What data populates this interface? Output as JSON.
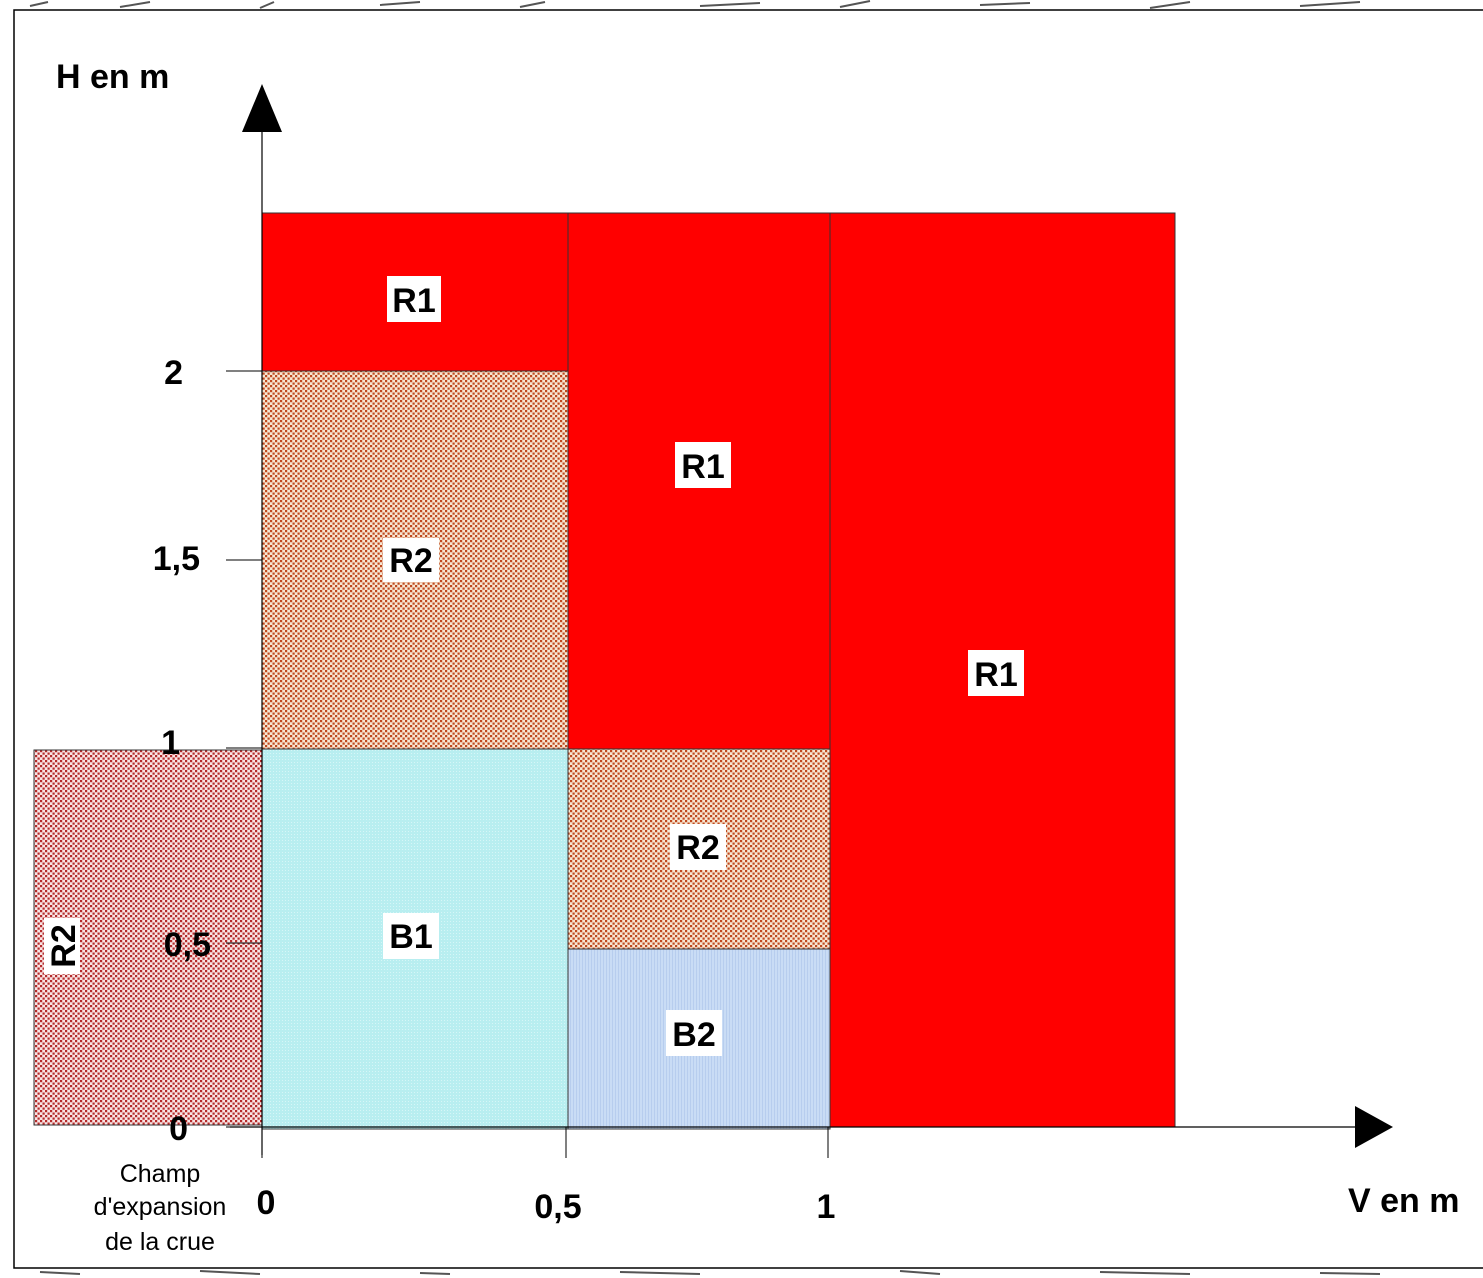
{
  "axes": {
    "y_label": "H en m",
    "x_label": "V en m",
    "y_ticks": [
      "0",
      "0,5",
      "1",
      "1,5",
      "2"
    ],
    "x_ticks": [
      "0",
      "0,5",
      "1"
    ]
  },
  "expansion_note": {
    "line1": "Champ",
    "line2": "d'expansion",
    "line3": "de la crue"
  },
  "zones": {
    "r1_top_left": "R1",
    "r1_middle": "R1",
    "r1_right": "R1",
    "r2_upper_left": "R2",
    "r2_middle": "R2",
    "r2_expansion": "R2",
    "b1": "B1",
    "b2": "B2"
  },
  "colors": {
    "r1": "#ff0000",
    "r2_base": "#f6e6d2",
    "r2_dot": "#c0481e",
    "r2_expansion_base": "#f8e4e4",
    "r2_expansion_dot": "#b52a2a",
    "b1": "#b8eef0",
    "b2": "#c9dcf5",
    "axis": "#000000"
  }
}
